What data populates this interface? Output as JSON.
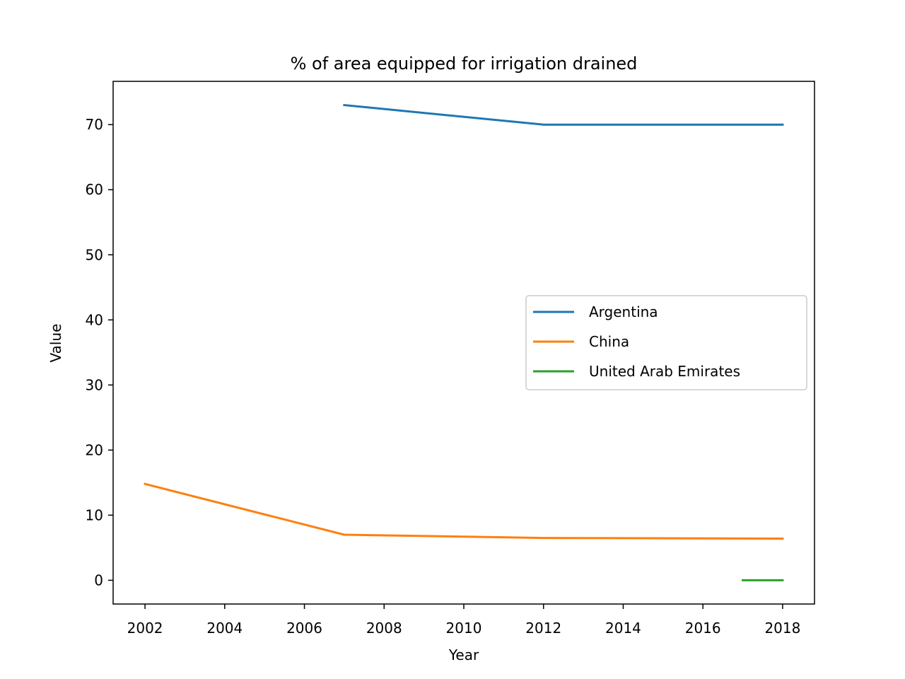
{
  "chart_data": {
    "type": "line",
    "title": "% of area equipped for irrigation drained",
    "xlabel": "Year",
    "ylabel": "Value",
    "xlim": [
      2001.2,
      2018.8
    ],
    "ylim": [
      -3.65,
      76.65
    ],
    "xticks": [
      2002,
      2004,
      2006,
      2008,
      2010,
      2012,
      2014,
      2016,
      2018
    ],
    "yticks": [
      0,
      10,
      20,
      30,
      40,
      50,
      60,
      70
    ],
    "grid": false,
    "legend_position": "center-right",
    "series": [
      {
        "name": "Argentina",
        "color": "#1f77b4",
        "points": [
          [
            2007,
            73.0
          ],
          [
            2012,
            70.0
          ],
          [
            2018,
            70.0
          ]
        ]
      },
      {
        "name": "China",
        "color": "#ff7f0e",
        "points": [
          [
            2002,
            14.8
          ],
          [
            2007,
            7.0
          ],
          [
            2012,
            6.5
          ],
          [
            2018,
            6.4
          ]
        ]
      },
      {
        "name": "United Arab Emirates",
        "color": "#2ca02c",
        "points": [
          [
            2017,
            0.0
          ],
          [
            2018,
            0.0
          ]
        ]
      }
    ]
  }
}
